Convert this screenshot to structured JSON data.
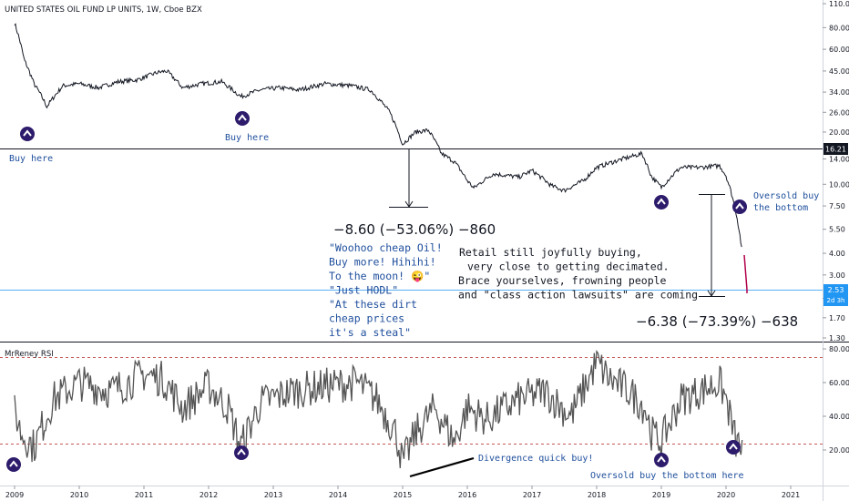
{
  "title": "UNITED STATES OIL FUND LP UNITS, 1W, Cboe BZX",
  "rsi_title": "MrReney RSI",
  "colors": {
    "price_line": "#131722",
    "rsi_line": "#555555",
    "marker_fill": "#2d1b6b",
    "annotation_blue": "#1e4e9c",
    "price_tag_bg": "#131722",
    "last_price_bg": "#2196f3",
    "rsi_band": "#b22222"
  },
  "price_tag_level": "16.21",
  "last_price_label": "2.53",
  "last_price_sub": "2d 3h",
  "annotations": {
    "buy_here_1": "Buy here",
    "buy_here_2": "Buy here",
    "oversold_1": "Oversold buy",
    "oversold_2": "the bottom",
    "measure_1": "−8.60 (−53.06%) −860",
    "measure_2": "−6.38 (−73.39%) −638",
    "woohoo": [
      "\"Woohoo cheap Oil!",
      "Buy more! Hihihi!",
      "To the moon! 😜\"",
      "\"Just HODL\"",
      "\"At these dirt",
      "cheap prices",
      "it's a steal\""
    ],
    "retail": [
      "Retail still joyfully buying,",
      "very close to getting decimated.",
      "Brace yourselves, frowning people",
      "and \"class action lawsuits\" are coming"
    ],
    "divergence": "Divergence quick buy!",
    "oversold_rsi": "Oversold buy the bottom here"
  },
  "chart_data": [
    {
      "type": "line",
      "title": "UNITED STATES OIL FUND LP UNITS, 1W, Cboe BZX",
      "scale": "log",
      "y_ticks": [
        "110.00",
        "80.00",
        "60.00",
        "45.00",
        "34.00",
        "26.00",
        "20.00",
        "14.00",
        "10.00",
        "7.50",
        "5.50",
        "4.00",
        "3.00",
        "2.20",
        "1.70",
        "1.30"
      ],
      "x": [
        2009.0,
        2009.15,
        2009.3,
        2009.5,
        2009.75,
        2010.0,
        2010.3,
        2010.6,
        2010.9,
        2011.2,
        2011.35,
        2011.6,
        2011.9,
        2012.2,
        2012.5,
        2012.8,
        2013.1,
        2013.4,
        2013.8,
        2014.2,
        2014.5,
        2014.8,
        2015.0,
        2015.2,
        2015.4,
        2015.6,
        2015.8,
        2016.0,
        2016.1,
        2016.4,
        2016.8,
        2017.0,
        2017.3,
        2017.5,
        2017.8,
        2018.0,
        2018.4,
        2018.7,
        2018.85,
        2019.0,
        2019.3,
        2019.6,
        2019.9,
        2020.0,
        2020.15,
        2020.3
      ],
      "y": [
        85,
        52,
        38,
        28,
        37,
        38,
        36,
        39,
        40,
        44,
        45,
        36,
        38,
        39,
        32,
        35,
        36,
        35,
        38,
        37,
        35,
        26,
        17,
        20,
        20.5,
        15,
        13.5,
        10.5,
        9.5,
        11.5,
        11,
        12,
        9.8,
        9.2,
        10.5,
        12.5,
        14,
        15,
        11,
        9.6,
        12.5,
        12.5,
        12.8,
        11.2,
        7.0,
        2.53
      ],
      "last_value": 2.53
    },
    {
      "type": "line",
      "title": "MrReney RSI",
      "ylim": [
        0,
        80
      ],
      "y_ticks": [
        "80.00",
        "60.00",
        "40.00",
        "20.00"
      ],
      "band_levels": [
        75,
        25
      ],
      "x": [
        2009.0,
        2009.1,
        2009.3,
        2009.6,
        2010.0,
        2010.5,
        2011.0,
        2011.3,
        2011.6,
        2012.0,
        2012.3,
        2012.5,
        2012.8,
        2013.3,
        2013.8,
        2014.3,
        2014.6,
        2014.9,
        2015.0,
        2015.2,
        2015.5,
        2015.8,
        2016.0,
        2016.3,
        2016.8,
        2017.2,
        2017.6,
        2018.0,
        2018.2,
        2018.5,
        2018.75,
        2018.85,
        2019.0,
        2019.3,
        2019.6,
        2019.9,
        2020.0,
        2020.15,
        2020.25
      ],
      "y": [
        44,
        30,
        22,
        50,
        60,
        55,
        65,
        62,
        45,
        58,
        45,
        22,
        48,
        55,
        58,
        60,
        50,
        30,
        12,
        30,
        45,
        25,
        45,
        38,
        50,
        55,
        40,
        72,
        62,
        55,
        45,
        30,
        25,
        50,
        55,
        60,
        50,
        25,
        20
      ]
    }
  ],
  "x_axis_labels": [
    "2009",
    "2010",
    "2011",
    "2012",
    "2013",
    "2014",
    "2015",
    "2016",
    "2017",
    "2018",
    "2019",
    "2020",
    "2021"
  ]
}
